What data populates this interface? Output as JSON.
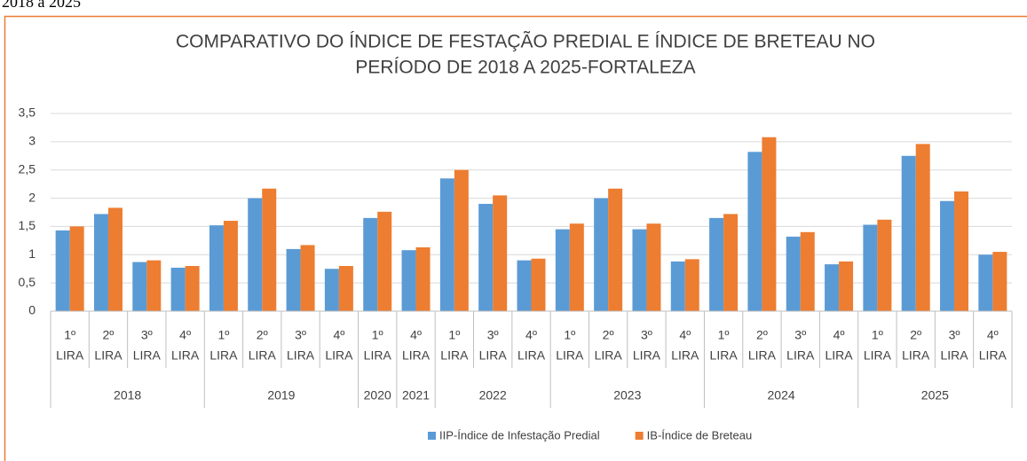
{
  "page_caption": "2018 a 2025",
  "chart_data": {
    "type": "bar",
    "title": [
      "COMPARATIVO DO ÍNDICE DE FESTAÇÃO PREDIAL E ÍNDICE DE BRETEAU NO",
      "PERÍODO DE 2018 A 2025-FORTALEZA"
    ],
    "groups": [
      {
        "label": "2018",
        "categories": [
          [
            "1º",
            "LIRA"
          ],
          [
            "2º",
            "LIRA"
          ],
          [
            "3º",
            "LIRA"
          ],
          [
            "4º",
            "LIRA"
          ]
        ]
      },
      {
        "label": "2019",
        "categories": [
          [
            "1º",
            "LIRA"
          ],
          [
            "2º",
            "LIRA"
          ],
          [
            "3º",
            "LIRA"
          ],
          [
            "4º",
            "LIRA"
          ]
        ]
      },
      {
        "label": "2020",
        "categories": [
          [
            "1º",
            "LIRA"
          ]
        ]
      },
      {
        "label": "2021",
        "categories": [
          [
            "4º",
            "LIRA"
          ]
        ]
      },
      {
        "label": "2022",
        "categories": [
          [
            "1º",
            "LIRA"
          ],
          [
            "3º",
            "LIRA"
          ],
          [
            "4º",
            "LIRA"
          ]
        ]
      },
      {
        "label": "2023",
        "categories": [
          [
            "1º",
            "LIRA"
          ],
          [
            "2º",
            "LIRA"
          ],
          [
            "3º",
            "LIRA"
          ],
          [
            "4º",
            "LIRA"
          ]
        ]
      },
      {
        "label": "2024",
        "categories": [
          [
            "1º",
            "LIRA"
          ],
          [
            "2º",
            "LIRA"
          ],
          [
            "3º",
            "LIRA"
          ],
          [
            "4º",
            "LIRA"
          ]
        ]
      },
      {
        "label": "2025",
        "categories": [
          [
            "1º",
            "LIRA"
          ],
          [
            "2º",
            "LIRA"
          ],
          [
            "3º",
            "LIRA"
          ],
          [
            "4º",
            "LIRA"
          ]
        ]
      }
    ],
    "series": [
      {
        "name": "IIP-Índice de Infestação Predial",
        "color": "#5b9bd5",
        "values": [
          1.43,
          1.72,
          0.87,
          0.77,
          1.52,
          2.0,
          1.1,
          0.75,
          1.65,
          1.08,
          2.35,
          1.9,
          0.9,
          1.45,
          2.0,
          1.45,
          0.88,
          1.65,
          2.82,
          1.32,
          0.83,
          1.53,
          2.75,
          1.95,
          1.0
        ]
      },
      {
        "name": "IB-Índice de Breteau",
        "color": "#ed7d31",
        "values": [
          1.5,
          1.83,
          0.9,
          0.8,
          1.6,
          2.17,
          1.17,
          0.8,
          1.76,
          1.13,
          2.5,
          2.05,
          0.93,
          1.55,
          2.17,
          1.55,
          0.92,
          1.72,
          3.08,
          1.4,
          0.88,
          1.62,
          2.96,
          2.12,
          1.05
        ]
      }
    ],
    "ylim": [
      0,
      3.5
    ],
    "yticks": [
      0,
      {
        "value": 0.5,
        "label": "0,5"
      },
      1,
      {
        "value": 1.5,
        "label": "1,5"
      },
      2,
      {
        "value": 2.5,
        "label": "2,5"
      },
      3,
      {
        "value": 3.5,
        "label": "3,5"
      }
    ],
    "grid": true,
    "legend": "bottom"
  }
}
